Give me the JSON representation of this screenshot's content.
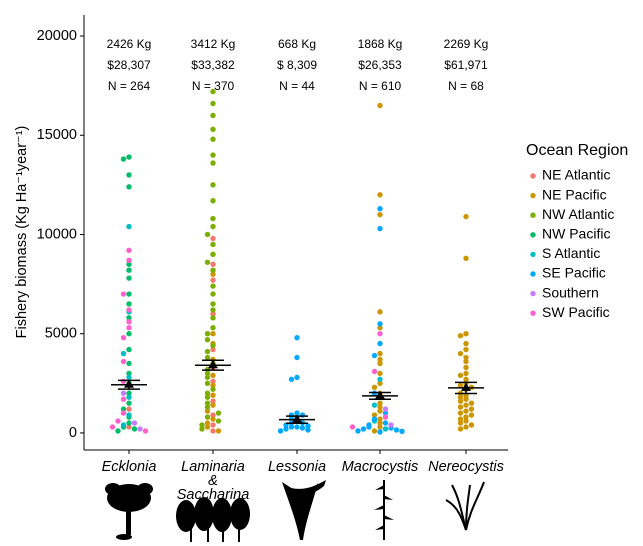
{
  "chart_data": {
    "type": "beeswarm",
    "y_label": "Fishery biomass (Kg Ha⁻¹year⁻¹)",
    "categories": [
      "Ecklonia",
      "Laminaria\n&\nSaccharina",
      "Lessonia",
      "Macrocystis",
      "Nereocystis"
    ],
    "annotations": [
      {
        "mass": "2426 Kg",
        "value": "$28,307",
        "n": "N = 264"
      },
      {
        "mass": "3412 Kg",
        "value": "$33,382",
        "n": "N = 370"
      },
      {
        "mass": "668 Kg",
        "value": "$ 8,309",
        "n": "N = 44"
      },
      {
        "mass": "1868 Kg",
        "value": "$26,353",
        "n": "N = 610"
      },
      {
        "mass": "2269 Kg",
        "value": "$61,971",
        "n": "N = 68"
      }
    ],
    "means": [
      2426,
      3412,
      668,
      1868,
      2269
    ],
    "errors": [
      220,
      250,
      180,
      170,
      280
    ],
    "ylim": [
      -860,
      21060
    ],
    "yticks": [
      0,
      5000,
      10000,
      15000,
      20000
    ],
    "legend_title": "Ocean Region",
    "series": [
      {
        "name": "NE Atlantic",
        "color": "#F8766D",
        "values": [
          [
            1200,
            300
          ],
          [
            9800,
            8500,
            7700,
            6000,
            4200,
            3300,
            2600,
            1600,
            900,
            400,
            100
          ],
          [],
          [],
          []
        ]
      },
      {
        "name": "NE Pacific",
        "color": "#CD9600",
        "values": [
          [],
          [
            8000,
            5000,
            4500,
            3700,
            2900,
            2400,
            1900,
            1400,
            1100,
            700,
            500,
            300,
            100
          ],
          [],
          [
            16500,
            12000,
            11000,
            6100,
            5300,
            4000,
            3700,
            3500,
            3000,
            2500,
            2300,
            2000,
            1800,
            1500,
            1300,
            1100,
            900,
            700,
            500,
            300,
            100
          ],
          [
            10900,
            8800,
            5000,
            4900,
            4500,
            4200,
            4000,
            3800,
            3600,
            3300,
            3000,
            2900,
            2700,
            2500,
            2400,
            2300,
            2200,
            2000,
            1900,
            1800,
            1700,
            1600,
            1500,
            1400,
            1300,
            1200,
            1100,
            1000,
            900,
            800,
            700,
            600,
            500,
            400,
            300,
            200
          ]
        ]
      },
      {
        "name": "NW Atlantic",
        "color": "#7CAE00",
        "values": [
          [],
          [
            17200,
            16600,
            16000,
            15300,
            14800,
            14000,
            13600,
            12500,
            11700,
            10800,
            10400,
            10000,
            9500,
            9000,
            8600,
            8200,
            7400,
            7000,
            6500,
            6200,
            5800,
            5300,
            5000,
            4700,
            4400,
            4100,
            3800,
            3500,
            3200,
            3000,
            2800,
            2500,
            2200,
            2000,
            1800,
            1500,
            1300,
            1000,
            800,
            600,
            400,
            200
          ],
          [],
          [],
          []
        ]
      },
      {
        "name": "NW Pacific",
        "color": "#00BE67",
        "values": [
          [
            13900,
            13800,
            13000,
            12400,
            8500,
            8200,
            7800,
            7000,
            6500,
            5800,
            5000,
            4200,
            3500,
            3000,
            2500,
            2000,
            1500,
            1200,
            800,
            500,
            300,
            200,
            100
          ],
          [],
          [],
          [],
          []
        ]
      },
      {
        "name": "S Atlantic",
        "color": "#00BFC4",
        "values": [
          [
            10400,
            6100,
            4000,
            2800,
            1800,
            900,
            400
          ],
          [],
          [],
          [
            2700,
            1400,
            600,
            200
          ],
          []
        ]
      },
      {
        "name": "SE Pacific",
        "color": "#00A9FF",
        "values": [
          [],
          [],
          [
            4800,
            3800,
            2800,
            2700,
            1000,
            900,
            900,
            800,
            700,
            600,
            500,
            500,
            400,
            350,
            300,
            300,
            250,
            200,
            150,
            100
          ],
          [
            11300,
            10300,
            5500,
            4500,
            3900,
            2000,
            1000,
            700,
            500,
            400,
            300,
            250,
            200,
            150,
            100,
            80,
            50
          ],
          []
        ]
      },
      {
        "name": "Southern",
        "color": "#C77CFF",
        "values": [
          [
            2000,
            500,
            200
          ],
          [],
          [],
          [
            1200,
            400
          ],
          []
        ]
      },
      {
        "name": "SW Pacific",
        "color": "#FF61CC",
        "values": [
          [
            9200,
            8700,
            7000,
            6200,
            5600,
            5300,
            4800,
            3600,
            2600,
            1700,
            1000,
            600,
            300,
            100
          ],
          [],
          [],
          [
            5000,
            3100,
            800,
            300
          ],
          []
        ]
      }
    ]
  }
}
